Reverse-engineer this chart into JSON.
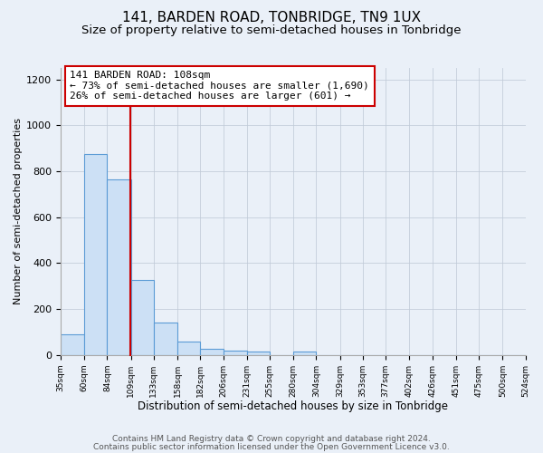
{
  "title": "141, BARDEN ROAD, TONBRIDGE, TN9 1UX",
  "subtitle": "Size of property relative to semi-detached houses in Tonbridge",
  "xlabel": "Distribution of semi-detached houses by size in Tonbridge",
  "ylabel": "Number of semi-detached properties",
  "bins": [
    35,
    60,
    84,
    109,
    133,
    158,
    182,
    206,
    231,
    255,
    280,
    304,
    329,
    353,
    377,
    402,
    426,
    451,
    475,
    500,
    524
  ],
  "counts": [
    88,
    876,
    766,
    327,
    140,
    57,
    25,
    18,
    15,
    0,
    15,
    0,
    0,
    0,
    0,
    0,
    0,
    0,
    0,
    0
  ],
  "bar_color": "#cce0f5",
  "bar_edge_color": "#5b9bd5",
  "property_size": 108,
  "property_line_color": "#cc0000",
  "annotation_text_line1": "141 BARDEN ROAD: 108sqm",
  "annotation_text_line2": "← 73% of semi-detached houses are smaller (1,690)",
  "annotation_text_line3": "26% of semi-detached houses are larger (601) →",
  "annotation_box_color": "#ffffff",
  "annotation_box_edge": "#cc0000",
  "ylim": [
    0,
    1250
  ],
  "yticks": [
    0,
    200,
    400,
    600,
    800,
    1000,
    1200
  ],
  "tick_labels": [
    "35sqm",
    "60sqm",
    "84sqm",
    "109sqm",
    "133sqm",
    "158sqm",
    "182sqm",
    "206sqm",
    "231sqm",
    "255sqm",
    "280sqm",
    "304sqm",
    "329sqm",
    "353sqm",
    "377sqm",
    "402sqm",
    "426sqm",
    "451sqm",
    "475sqm",
    "500sqm",
    "524sqm"
  ],
  "footer_line1": "Contains HM Land Registry data © Crown copyright and database right 2024.",
  "footer_line2": "Contains public sector information licensed under the Open Government Licence v3.0.",
  "bg_color": "#eaf0f8",
  "plot_bg_color": "#eaf0f8",
  "title_fontsize": 11,
  "subtitle_fontsize": 9.5,
  "xlabel_fontsize": 8.5,
  "ylabel_fontsize": 8,
  "footer_fontsize": 6.5,
  "annotation_fontsize": 8
}
